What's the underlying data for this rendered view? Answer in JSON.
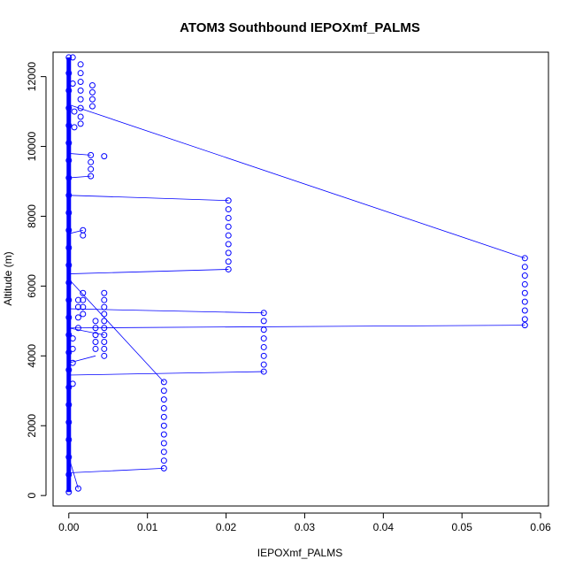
{
  "chart_data": {
    "type": "scatter",
    "title": "ATOM3 Southbound IEPOXmf_PALMS",
    "xlabel": "IEPOXmf_PALMS",
    "ylabel": "Altitude (m)",
    "xlim": [
      -0.002,
      0.061
    ],
    "ylim": [
      -300,
      12700
    ],
    "x_ticks": [
      0.0,
      0.01,
      0.02,
      0.03,
      0.04,
      0.05,
      0.06
    ],
    "x_tick_labels": [
      "0.00",
      "0.01",
      "0.02",
      "0.03",
      "0.04",
      "0.05",
      "0.06"
    ],
    "y_ticks": [
      0,
      2000,
      4000,
      6000,
      8000,
      10000,
      12000
    ],
    "y_tick_labels": [
      "0",
      "2000",
      "4000",
      "6000",
      "8000",
      "10000",
      "12000"
    ],
    "grid": false,
    "connected": true,
    "color": "#0000ff",
    "series": [
      {
        "points": [
          [
            0.0,
            100
          ],
          [
            0.0,
            600
          ],
          [
            0.0,
            1100
          ],
          [
            0.0,
            1600
          ],
          [
            0.0,
            2100
          ],
          [
            0.0,
            2600
          ],
          [
            0.0,
            3100
          ],
          [
            0.0,
            3600
          ],
          [
            0.0,
            4100
          ],
          [
            0.0,
            4600
          ],
          [
            0.0,
            5100
          ],
          [
            0.0,
            5600
          ],
          [
            0.0,
            6100
          ],
          [
            0.0,
            6600
          ],
          [
            0.0,
            7100
          ],
          [
            0.0,
            7600
          ],
          [
            0.0,
            8100
          ],
          [
            0.0,
            8600
          ],
          [
            0.0,
            9100
          ],
          [
            0.0,
            9600
          ],
          [
            0.0,
            10100
          ],
          [
            0.0,
            10600
          ],
          [
            0.0,
            11100
          ],
          [
            0.0,
            11600
          ],
          [
            0.0,
            12100
          ],
          [
            0.0,
            12550
          ],
          [
            0.0005,
            12550
          ],
          [
            0.0005,
            11800
          ],
          [
            0.0007,
            11000
          ],
          [
            0.0007,
            10550
          ],
          [
            0.0028,
            9750
          ],
          [
            0.0045,
            9720
          ],
          [
            0.0028,
            9550
          ],
          [
            0.0028,
            9350
          ],
          [
            0.0028,
            9150
          ],
          [
            0.0018,
            7600
          ],
          [
            0.0018,
            7450
          ],
          [
            0.0005,
            3200
          ],
          [
            0.0005,
            3800
          ],
          [
            0.0005,
            4200
          ],
          [
            0.0005,
            4500
          ],
          [
            0.0012,
            4800
          ],
          [
            0.0012,
            5100
          ],
          [
            0.0012,
            5400
          ],
          [
            0.0012,
            5600
          ],
          [
            0.0015,
            12350
          ],
          [
            0.0015,
            12100
          ],
          [
            0.0015,
            11850
          ],
          [
            0.0015,
            11600
          ],
          [
            0.0015,
            11350
          ],
          [
            0.0015,
            11100
          ],
          [
            0.0015,
            10850
          ],
          [
            0.0015,
            10650
          ],
          [
            0.003,
            11750
          ],
          [
            0.003,
            11550
          ],
          [
            0.003,
            11350
          ],
          [
            0.003,
            11150
          ],
          [
            0.058,
            6800
          ],
          [
            0.058,
            6550
          ],
          [
            0.058,
            6300
          ],
          [
            0.058,
            6050
          ],
          [
            0.058,
            5800
          ],
          [
            0.058,
            5550
          ],
          [
            0.058,
            5300
          ],
          [
            0.058,
            5050
          ],
          [
            0.058,
            4880
          ],
          [
            0.0203,
            8450
          ],
          [
            0.0203,
            8200
          ],
          [
            0.0203,
            7950
          ],
          [
            0.0203,
            7700
          ],
          [
            0.0203,
            7450
          ],
          [
            0.0203,
            7200
          ],
          [
            0.0203,
            6950
          ],
          [
            0.0203,
            6700
          ],
          [
            0.0203,
            6480
          ],
          [
            0.0248,
            5230
          ],
          [
            0.0248,
            5000
          ],
          [
            0.0248,
            4750
          ],
          [
            0.0248,
            4500
          ],
          [
            0.0248,
            4250
          ],
          [
            0.0248,
            4000
          ],
          [
            0.0248,
            3750
          ],
          [
            0.0248,
            3550
          ],
          [
            0.0121,
            3250
          ],
          [
            0.0121,
            3000
          ],
          [
            0.0121,
            2750
          ],
          [
            0.0121,
            2500
          ],
          [
            0.0121,
            2250
          ],
          [
            0.0121,
            2000
          ],
          [
            0.0121,
            1750
          ],
          [
            0.0121,
            1500
          ],
          [
            0.0121,
            1250
          ],
          [
            0.0121,
            1000
          ],
          [
            0.0121,
            780
          ],
          [
            0.0045,
            5800
          ],
          [
            0.0045,
            5600
          ],
          [
            0.0045,
            5400
          ],
          [
            0.0045,
            5200
          ],
          [
            0.0045,
            5000
          ],
          [
            0.0045,
            4800
          ],
          [
            0.0045,
            4600
          ],
          [
            0.0045,
            4400
          ],
          [
            0.0045,
            4200
          ],
          [
            0.0045,
            4000
          ],
          [
            0.0034,
            5000
          ],
          [
            0.0034,
            4800
          ],
          [
            0.0034,
            4600
          ],
          [
            0.0034,
            4400
          ],
          [
            0.0034,
            4200
          ],
          [
            0.0018,
            5800
          ],
          [
            0.0018,
            5600
          ],
          [
            0.0018,
            5400
          ],
          [
            0.0018,
            5200
          ],
          [
            0.0012,
            200
          ]
        ],
        "segments": [
          [
            [
              0.0,
              11200
            ],
            [
              0.058,
              6800
            ]
          ],
          [
            [
              0.058,
              4880
            ],
            [
              0.0,
              4800
            ]
          ],
          [
            [
              0.0,
              8600
            ],
            [
              0.0203,
              8450
            ]
          ],
          [
            [
              0.0203,
              6480
            ],
            [
              0.0,
              6350
            ]
          ],
          [
            [
              0.0,
              5350
            ],
            [
              0.0248,
              5230
            ]
          ],
          [
            [
              0.0248,
              3550
            ],
            [
              0.0,
              3450
            ]
          ],
          [
            [
              0.0,
              6200
            ],
            [
              0.0121,
              3250
            ]
          ],
          [
            [
              0.0121,
              780
            ],
            [
              0.0,
              650
            ]
          ],
          [
            [
              0.0,
              9800
            ],
            [
              0.0028,
              9750
            ]
          ],
          [
            [
              0.0,
              9100
            ],
            [
              0.0028,
              9150
            ]
          ],
          [
            [
              0.0,
              7500
            ],
            [
              0.0018,
              7600
            ]
          ],
          [
            [
              0.0,
              3800
            ],
            [
              0.0034,
              4000
            ]
          ],
          [
            [
              0.0,
              4800
            ],
            [
              0.0045,
              4600
            ]
          ],
          [
            [
              0.0,
              1100
            ],
            [
              0.0012,
              200
            ]
          ]
        ]
      }
    ]
  }
}
